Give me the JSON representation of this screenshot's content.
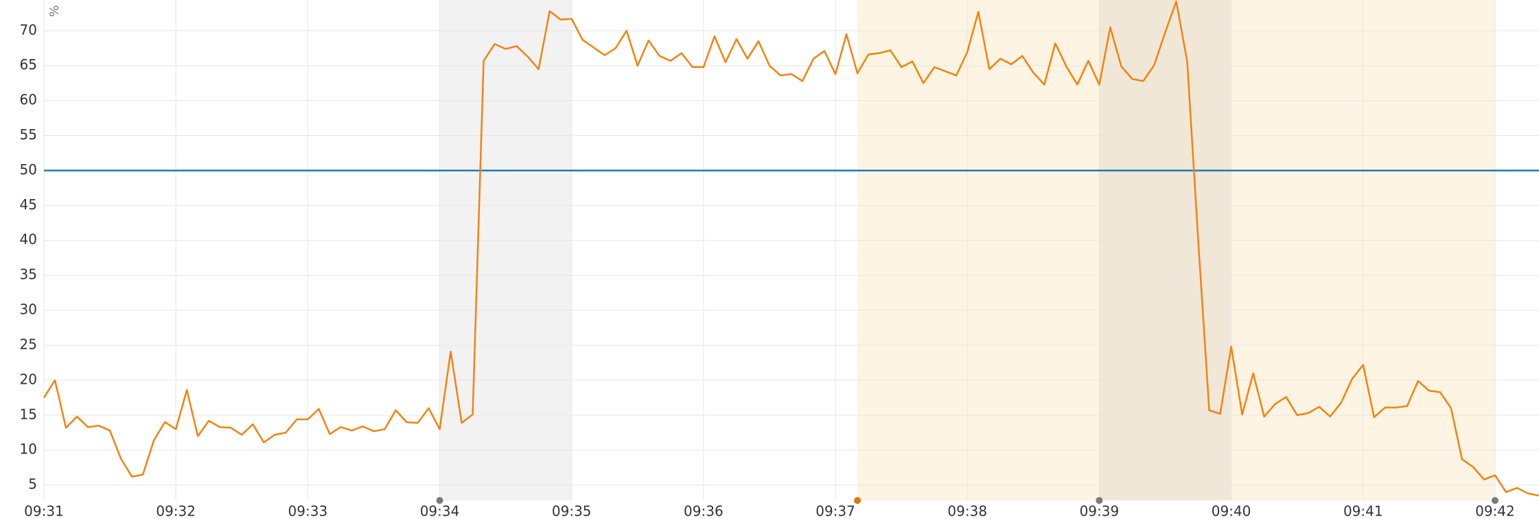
{
  "chart_data": {
    "type": "line",
    "y_label": "%",
    "x": [
      0,
      5,
      10,
      15,
      20,
      25,
      30,
      35,
      40,
      45,
      50,
      55,
      60,
      65,
      70,
      75,
      80,
      85,
      90,
      95,
      100,
      105,
      110,
      115,
      120,
      125,
      130,
      135,
      140,
      145,
      150,
      155,
      160,
      165,
      170,
      175,
      180,
      185,
      190,
      195,
      200,
      205,
      210,
      215,
      220,
      225,
      230,
      235,
      240,
      245,
      250,
      255,
      260,
      265,
      270,
      275,
      280,
      285,
      290,
      295,
      300,
      305,
      310,
      315,
      320,
      325,
      330,
      335,
      340,
      345,
      350,
      355,
      360,
      365,
      370,
      375,
      380,
      385,
      390,
      395,
      400,
      405,
      410,
      415,
      420,
      425,
      430,
      435,
      440,
      445,
      450,
      455,
      460,
      465,
      470,
      475,
      480,
      485,
      490,
      495,
      500,
      505,
      510,
      515,
      520,
      525,
      530,
      535,
      540,
      545,
      550,
      555,
      560,
      565,
      570,
      575,
      580,
      585,
      590,
      595,
      600,
      605,
      610,
      615,
      620,
      625,
      630,
      635,
      640,
      645,
      650,
      655,
      660,
      665,
      670,
      675,
      680
    ],
    "values": [
      17.5,
      20,
      13.2,
      14.8,
      13.3,
      13.5,
      12.8,
      8.8,
      6.2,
      6.5,
      11.4,
      14,
      13,
      18.6,
      12,
      14.2,
      13.3,
      13.2,
      12.2,
      13.7,
      11.1,
      12.2,
      12.5,
      14.4,
      14.4,
      15.9,
      12.3,
      13.3,
      12.8,
      13.4,
      12.7,
      13,
      15.7,
      14,
      13.9,
      16,
      13,
      24.1,
      13.9,
      15.1,
      65.7,
      68.1,
      67.4,
      67.8,
      66.3,
      64.5,
      72.8,
      71.6,
      71.7,
      68.7,
      67.6,
      66.5,
      67.5,
      70,
      65,
      68.6,
      66.4,
      65.7,
      66.8,
      64.8,
      64.8,
      69.2,
      65.5,
      68.8,
      66,
      68.5,
      65,
      63.6,
      63.8,
      62.8,
      66,
      67.1,
      63.8,
      69.5,
      63.9,
      66.6,
      66.8,
      67.2,
      64.8,
      65.6,
      62.5,
      64.8,
      64.2,
      63.6,
      67,
      72.7,
      64.5,
      66,
      65.2,
      66.4,
      64,
      62.3,
      68.2,
      64.9,
      62.3,
      65.7,
      62.3,
      70.5,
      64.9,
      63.1,
      62.8,
      65.1,
      69.8,
      74.2,
      65.6,
      40,
      15.7,
      15.2,
      24.8,
      15.1,
      21,
      14.8,
      16.6,
      17.6,
      15,
      15.3,
      16.2,
      14.8,
      16.8,
      20.2,
      22.2,
      14.7,
      16.1,
      16.1,
      16.3,
      19.9,
      18.5,
      18.3,
      16,
      8.7,
      7.6,
      5.8,
      6.4,
      4,
      4.6,
      3.8,
      3.5
    ],
    "color": "#f5820d",
    "xlim": [
      0,
      680
    ],
    "ylim": [
      2.8,
      74.4
    ],
    "xticks": [
      {
        "value": 0,
        "label": "09:31"
      },
      {
        "value": 60,
        "label": "09:32"
      },
      {
        "value": 120,
        "label": "09:33"
      },
      {
        "value": 180,
        "label": "09:34"
      },
      {
        "value": 240,
        "label": "09:35"
      },
      {
        "value": 300,
        "label": "09:36"
      },
      {
        "value": 360,
        "label": "09:37"
      },
      {
        "value": 420,
        "label": "09:38"
      },
      {
        "value": 480,
        "label": "09:39"
      },
      {
        "value": 540,
        "label": "09:40"
      },
      {
        "value": 600,
        "label": "09:41"
      },
      {
        "value": 660,
        "label": "09:42"
      }
    ],
    "yticks": [
      5,
      10,
      15,
      20,
      25,
      30,
      35,
      40,
      45,
      50,
      55,
      60,
      65,
      70
    ],
    "grid": true,
    "threshold": {
      "value": 50,
      "color": "#1f78b4"
    },
    "bands": [
      {
        "x": [
          370,
          660
        ],
        "color": "#fdf4e3"
      },
      {
        "x": [
          180,
          240
        ],
        "color": "rgba(0,0,0,0.05)"
      },
      {
        "x": [
          480,
          540
        ],
        "color": "rgba(0,0,0,0.05)"
      }
    ],
    "markers": [
      {
        "x": 180,
        "color": "#7a7a7a"
      },
      {
        "x": 370,
        "color": "#e07800"
      },
      {
        "x": 480,
        "color": "#7a7a7a"
      },
      {
        "x": 660,
        "color": "#7a7a7a"
      }
    ]
  }
}
